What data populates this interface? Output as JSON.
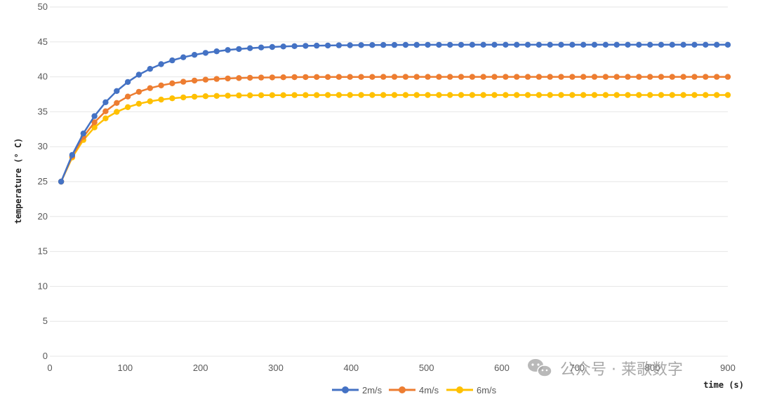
{
  "chart_data": {
    "type": "line",
    "title": "",
    "xlabel": "time (s)",
    "ylabel": "temperature (° C)",
    "xlim": [
      0,
      900
    ],
    "ylim": [
      0,
      50
    ],
    "x_ticks": [
      "0",
      "100",
      "200",
      "300",
      "400",
      "500",
      "600",
      "700",
      "800",
      "900"
    ],
    "y_ticks": [
      "0",
      "5",
      "10",
      "15",
      "20",
      "25",
      "30",
      "35",
      "40",
      "45",
      "50"
    ],
    "grid": "horizontal",
    "legend_position": "bottom",
    "series": [
      {
        "name": "2m/s",
        "color": "#4472C4",
        "T0": 25,
        "Tinf": 44.6,
        "tau": 68
      },
      {
        "name": "4m/s",
        "color": "#ED7D31",
        "T0": 25,
        "Tinf": 40.0,
        "tau": 53
      },
      {
        "name": "6m/s",
        "color": "#FFC000",
        "T0": 25,
        "Tinf": 37.4,
        "tau": 45
      }
    ],
    "x_start": 15,
    "x_end": 900,
    "x_step": 14.75
  },
  "watermark": {
    "text": "公众号 · 莱歌数字",
    "icon": "wechat-icon"
  }
}
